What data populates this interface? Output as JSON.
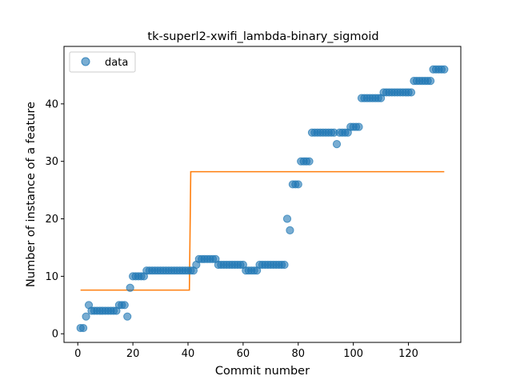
{
  "chart_data": {
    "type": "scatter",
    "title": "tk-superl2-xwifi_lambda-binary_sigmoid",
    "xlabel": "Commit number",
    "ylabel": "Number of instance of a feature",
    "xlim": [
      -5,
      139
    ],
    "ylim": [
      -1.5,
      50
    ],
    "xticks": [
      0,
      20,
      40,
      60,
      80,
      100,
      120
    ],
    "yticks": [
      0,
      10,
      20,
      30,
      40
    ],
    "legend": {
      "position": "top-left",
      "entries": [
        "data"
      ]
    },
    "colors": {
      "data": "#1f77b4",
      "fit": "#ff7f0e"
    },
    "series": [
      {
        "name": "data",
        "kind": "scatter",
        "points": [
          [
            1,
            1
          ],
          [
            2,
            1
          ],
          [
            3,
            3
          ],
          [
            4,
            5
          ],
          [
            5,
            4
          ],
          [
            6,
            4
          ],
          [
            7,
            4
          ],
          [
            8,
            4
          ],
          [
            9,
            4
          ],
          [
            10,
            4
          ],
          [
            11,
            4
          ],
          [
            12,
            4
          ],
          [
            13,
            4
          ],
          [
            14,
            4
          ],
          [
            15,
            5
          ],
          [
            16,
            5
          ],
          [
            17,
            5
          ],
          [
            18,
            3
          ],
          [
            19,
            8
          ],
          [
            20,
            10
          ],
          [
            21,
            10
          ],
          [
            22,
            10
          ],
          [
            23,
            10
          ],
          [
            24,
            10
          ],
          [
            25,
            11
          ],
          [
            26,
            11
          ],
          [
            27,
            11
          ],
          [
            28,
            11
          ],
          [
            29,
            11
          ],
          [
            30,
            11
          ],
          [
            31,
            11
          ],
          [
            32,
            11
          ],
          [
            33,
            11
          ],
          [
            34,
            11
          ],
          [
            35,
            11
          ],
          [
            36,
            11
          ],
          [
            37,
            11
          ],
          [
            38,
            11
          ],
          [
            39,
            11
          ],
          [
            40,
            11
          ],
          [
            41,
            11
          ],
          [
            42,
            11
          ],
          [
            43,
            12
          ],
          [
            44,
            13
          ],
          [
            45,
            13
          ],
          [
            46,
            13
          ],
          [
            47,
            13
          ],
          [
            48,
            13
          ],
          [
            49,
            13
          ],
          [
            50,
            13
          ],
          [
            51,
            12
          ],
          [
            52,
            12
          ],
          [
            53,
            12
          ],
          [
            54,
            12
          ],
          [
            55,
            12
          ],
          [
            56,
            12
          ],
          [
            57,
            12
          ],
          [
            58,
            12
          ],
          [
            59,
            12
          ],
          [
            60,
            12
          ],
          [
            61,
            11
          ],
          [
            62,
            11
          ],
          [
            63,
            11
          ],
          [
            64,
            11
          ],
          [
            65,
            11
          ],
          [
            66,
            12
          ],
          [
            67,
            12
          ],
          [
            68,
            12
          ],
          [
            69,
            12
          ],
          [
            70,
            12
          ],
          [
            71,
            12
          ],
          [
            72,
            12
          ],
          [
            73,
            12
          ],
          [
            74,
            12
          ],
          [
            75,
            12
          ],
          [
            76,
            20
          ],
          [
            77,
            18
          ],
          [
            78,
            26
          ],
          [
            79,
            26
          ],
          [
            80,
            26
          ],
          [
            81,
            30
          ],
          [
            82,
            30
          ],
          [
            83,
            30
          ],
          [
            84,
            30
          ],
          [
            85,
            35
          ],
          [
            86,
            35
          ],
          [
            87,
            35
          ],
          [
            88,
            35
          ],
          [
            89,
            35
          ],
          [
            90,
            35
          ],
          [
            91,
            35
          ],
          [
            92,
            35
          ],
          [
            93,
            35
          ],
          [
            94,
            33
          ],
          [
            95,
            35
          ],
          [
            96,
            35
          ],
          [
            97,
            35
          ],
          [
            98,
            35
          ],
          [
            99,
            36
          ],
          [
            100,
            36
          ],
          [
            101,
            36
          ],
          [
            102,
            36
          ],
          [
            103,
            41
          ],
          [
            104,
            41
          ],
          [
            105,
            41
          ],
          [
            106,
            41
          ],
          [
            107,
            41
          ],
          [
            108,
            41
          ],
          [
            109,
            41
          ],
          [
            110,
            41
          ],
          [
            111,
            42
          ],
          [
            112,
            42
          ],
          [
            113,
            42
          ],
          [
            114,
            42
          ],
          [
            115,
            42
          ],
          [
            116,
            42
          ],
          [
            117,
            42
          ],
          [
            118,
            42
          ],
          [
            119,
            42
          ],
          [
            120,
            42
          ],
          [
            121,
            42
          ],
          [
            122,
            44
          ],
          [
            123,
            44
          ],
          [
            124,
            44
          ],
          [
            125,
            44
          ],
          [
            126,
            44
          ],
          [
            127,
            44
          ],
          [
            128,
            44
          ],
          [
            129,
            46
          ],
          [
            130,
            46
          ],
          [
            131,
            46
          ],
          [
            132,
            46
          ],
          [
            133,
            46
          ]
        ]
      },
      {
        "kind": "line",
        "points": [
          [
            1,
            7.6
          ],
          [
            40.5,
            7.6
          ],
          [
            41,
            28.2
          ],
          [
            133,
            28.2
          ]
        ]
      }
    ]
  }
}
